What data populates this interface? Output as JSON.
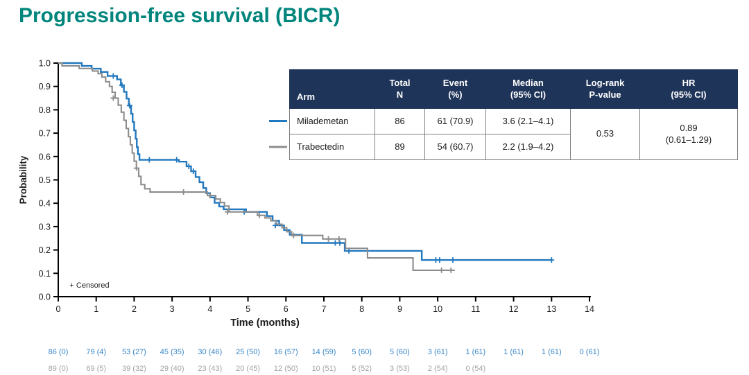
{
  "page": {
    "title": "Progression-free survival (BICR)",
    "title_color": "#00857C",
    "background": "#ffffff"
  },
  "table": {
    "header_bg": "#1F3459",
    "header_text_color": "#ffffff",
    "headers": [
      "Arm",
      "Total\nN",
      "Event\n(%)",
      "Median\n(95% CI)",
      "Log-rank\nP-value",
      "HR\n(95% CI)"
    ],
    "rows": [
      {
        "arm": "Milademetan",
        "total_n": "86",
        "event_pct": "61 (70.9)",
        "median_ci": "3.6 (2.1–4.1)"
      },
      {
        "arm": "Trabectedin",
        "total_n": "89",
        "event_pct": "54 (60.7)",
        "median_ci": "2.2 (1.9–4.2)"
      }
    ],
    "logrank_pvalue": "0.53",
    "hr_ci": "0.89\n(0.61–1.29)"
  },
  "chart_data": {
    "type": "line",
    "subtype": "kaplan-meier-step",
    "title": "",
    "xlabel": "Time (months)",
    "ylabel": "Probability",
    "censored_label": "+ Censored",
    "grid": false,
    "legend_position": "beside-table",
    "x_axis": {
      "label": "Time (months)",
      "min": 0,
      "max": 14,
      "ticks": [
        0,
        1,
        2,
        3,
        4,
        5,
        6,
        7,
        8,
        9,
        10,
        11,
        12,
        13,
        14
      ]
    },
    "y_axis": {
      "label": "Probability",
      "min": 0,
      "max": 1,
      "ticks": [
        0.0,
        0.1,
        0.2,
        0.3,
        0.4,
        0.5,
        0.6,
        0.7,
        0.8,
        0.9,
        1.0
      ]
    },
    "series": [
      {
        "name": "Milademetan",
        "color": "#2278BE",
        "at_risk_color": "#3A87C8",
        "steps": [
          [
            0,
            1.0
          ],
          [
            0.62,
            0.988
          ],
          [
            0.88,
            0.976
          ],
          [
            1.12,
            0.962
          ],
          [
            1.3,
            0.945
          ],
          [
            1.55,
            0.93
          ],
          [
            1.65,
            0.905
          ],
          [
            1.73,
            0.877
          ],
          [
            1.8,
            0.848
          ],
          [
            1.86,
            0.818
          ],
          [
            1.92,
            0.783
          ],
          [
            1.96,
            0.748
          ],
          [
            2.0,
            0.712
          ],
          [
            2.04,
            0.676
          ],
          [
            2.07,
            0.64
          ],
          [
            2.1,
            0.61
          ],
          [
            2.14,
            0.586
          ],
          [
            3.18,
            0.578
          ],
          [
            3.38,
            0.558
          ],
          [
            3.5,
            0.537
          ],
          [
            3.62,
            0.512
          ],
          [
            3.72,
            0.49
          ],
          [
            3.82,
            0.465
          ],
          [
            3.9,
            0.443
          ],
          [
            4.0,
            0.425
          ],
          [
            4.12,
            0.402
          ],
          [
            4.24,
            0.386
          ],
          [
            4.36,
            0.374
          ],
          [
            4.95,
            0.363
          ],
          [
            5.5,
            0.345
          ],
          [
            5.65,
            0.325
          ],
          [
            5.82,
            0.305
          ],
          [
            5.95,
            0.285
          ],
          [
            6.1,
            0.265
          ],
          [
            6.42,
            0.23
          ],
          [
            7.55,
            0.196
          ],
          [
            9.58,
            0.157
          ],
          [
            13.0,
            0.157
          ]
        ],
        "censors": [
          [
            1.45,
            0.945
          ],
          [
            1.68,
            0.905
          ],
          [
            1.88,
            0.818
          ],
          [
            2.4,
            0.586
          ],
          [
            3.12,
            0.586
          ],
          [
            3.44,
            0.558
          ],
          [
            3.56,
            0.537
          ],
          [
            4.9,
            0.363
          ],
          [
            5.72,
            0.305
          ],
          [
            7.3,
            0.23
          ],
          [
            7.42,
            0.23
          ],
          [
            7.66,
            0.196
          ],
          [
            9.95,
            0.157
          ],
          [
            10.05,
            0.157
          ],
          [
            10.4,
            0.157
          ],
          [
            13.0,
            0.157
          ]
        ],
        "at_risk": [
          "86 (0)",
          "79 (4)",
          "53 (27)",
          "45 (35)",
          "30 (46)",
          "25 (50)",
          "16 (57)",
          "14 (59)",
          "5 (60)",
          "5 (60)",
          "3 (61)",
          "1 (61)",
          "1 (61)",
          "1 (61)",
          "0 (61)"
        ]
      },
      {
        "name": "Trabectedin",
        "color": "#8C8C8C",
        "at_risk_color": "#A3A3A3",
        "steps": [
          [
            0,
            1.0
          ],
          [
            0.1,
            0.988
          ],
          [
            0.55,
            0.977
          ],
          [
            0.9,
            0.966
          ],
          [
            1.05,
            0.955
          ],
          [
            1.15,
            0.94
          ],
          [
            1.25,
            0.92
          ],
          [
            1.35,
            0.9
          ],
          [
            1.42,
            0.875
          ],
          [
            1.5,
            0.85
          ],
          [
            1.58,
            0.82
          ],
          [
            1.66,
            0.79
          ],
          [
            1.73,
            0.755
          ],
          [
            1.79,
            0.72
          ],
          [
            1.85,
            0.685
          ],
          [
            1.9,
            0.65
          ],
          [
            1.95,
            0.615
          ],
          [
            2.0,
            0.58
          ],
          [
            2.06,
            0.55
          ],
          [
            2.12,
            0.515
          ],
          [
            2.18,
            0.48
          ],
          [
            2.28,
            0.462
          ],
          [
            2.42,
            0.448
          ],
          [
            3.93,
            0.433
          ],
          [
            4.15,
            0.418
          ],
          [
            4.27,
            0.403
          ],
          [
            4.38,
            0.388
          ],
          [
            4.5,
            0.363
          ],
          [
            5.25,
            0.348
          ],
          [
            5.45,
            0.337
          ],
          [
            5.6,
            0.325
          ],
          [
            5.75,
            0.31
          ],
          [
            5.9,
            0.295
          ],
          [
            6.02,
            0.278
          ],
          [
            6.15,
            0.262
          ],
          [
            6.97,
            0.247
          ],
          [
            7.57,
            0.207
          ],
          [
            8.15,
            0.166
          ],
          [
            9.35,
            0.113
          ],
          [
            10.45,
            0.113
          ]
        ],
        "censors": [
          [
            1.45,
            0.85
          ],
          [
            2.06,
            0.55
          ],
          [
            3.3,
            0.448
          ],
          [
            4.0,
            0.433
          ],
          [
            4.46,
            0.363
          ],
          [
            5.3,
            0.348
          ],
          [
            6.2,
            0.262
          ],
          [
            7.12,
            0.247
          ],
          [
            7.4,
            0.247
          ],
          [
            10.1,
            0.113
          ],
          [
            10.35,
            0.113
          ]
        ],
        "at_risk": [
          "89 (0)",
          "69 (5)",
          "39 (32)",
          "29 (40)",
          "23 (43)",
          "20 (45)",
          "12 (50)",
          "10 (51)",
          "5 (52)",
          "3 (53)",
          "2 (54)",
          "0 (54)"
        ]
      }
    ]
  }
}
